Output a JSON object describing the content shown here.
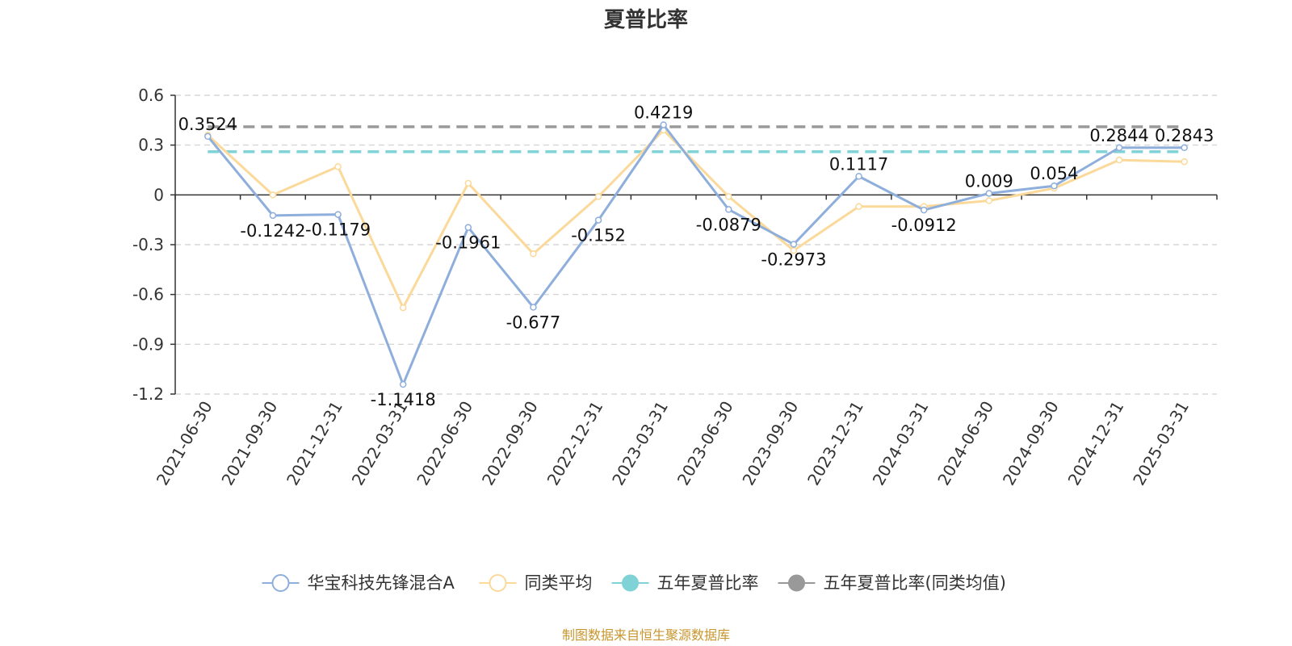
{
  "chart_data": {
    "type": "line",
    "title": "夏普比率",
    "categories": [
      "2021-06-30",
      "2021-09-30",
      "2021-12-31",
      "2022-03-31",
      "2022-06-30",
      "2022-09-30",
      "2022-12-31",
      "2023-03-31",
      "2023-06-30",
      "2023-09-30",
      "2023-12-31",
      "2024-03-31",
      "2024-06-30",
      "2024-09-30",
      "2024-12-31",
      "2025-03-31"
    ],
    "ylim": [
      -1.2,
      0.6
    ],
    "yticks": [
      "0.6",
      "0.3",
      "0",
      "-0.3",
      "-0.6",
      "-0.9",
      "-1.2"
    ],
    "ytick_values": [
      0.6,
      0.3,
      0,
      -0.3,
      -0.6,
      -0.9,
      -1.2
    ],
    "grid": true,
    "legend_position": "bottom",
    "series": [
      {
        "name": "华宝科技先锋混合A",
        "color": "#8eaedb",
        "values": [
          0.3524,
          -0.1242,
          -0.1179,
          -1.1418,
          -0.1961,
          -0.677,
          -0.152,
          0.4219,
          -0.0879,
          -0.2973,
          0.1117,
          -0.0912,
          0.009,
          0.054,
          0.2844,
          0.2843
        ],
        "labels": [
          "0.3524",
          "-0.1242",
          "-0.1179",
          "-1.1418",
          "-0.1961",
          "-0.677",
          "-0.152",
          "0.4219",
          "-0.0879",
          "-0.2973",
          "0.1117",
          "-0.0912",
          "0.009",
          "0.054",
          "0.2844",
          "0.2843"
        ]
      },
      {
        "name": "同类平均",
        "color": "#fbd99a",
        "values": [
          0.36,
          0.0,
          0.17,
          -0.68,
          0.07,
          -0.355,
          -0.01,
          0.39,
          -0.01,
          -0.335,
          -0.07,
          -0.07,
          -0.035,
          0.04,
          0.21,
          0.2
        ]
      },
      {
        "name": "五年夏普比率",
        "color": "#7fd3d6",
        "value": 0.26
      },
      {
        "name": "五年夏普比率(同类均值)",
        "color": "#999999",
        "value": 0.41
      }
    ],
    "source": "制图数据来自恒生聚源数据库"
  }
}
